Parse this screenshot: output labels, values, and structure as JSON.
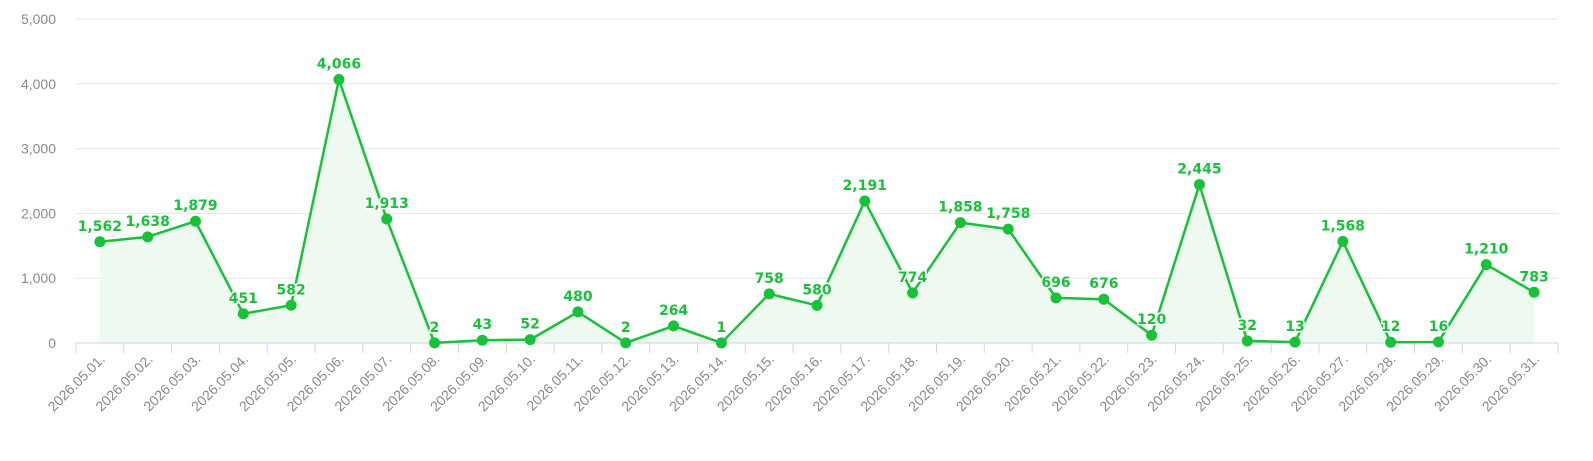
{
  "chart_data": {
    "type": "line",
    "categories": [
      "2026.05.01.",
      "2026.05.02.",
      "2026.05.03.",
      "2026.05.04.",
      "2026.05.05.",
      "2026.05.06.",
      "2026.05.07.",
      "2026.05.08.",
      "2026.05.09.",
      "2026.05.10.",
      "2026.05.11.",
      "2026.05.12.",
      "2026.05.13.",
      "2026.05.14.",
      "2026.05.15.",
      "2026.05.16.",
      "2026.05.17.",
      "2026.05.18.",
      "2026.05.19.",
      "2026.05.20.",
      "2026.05.21.",
      "2026.05.22.",
      "2026.05.23.",
      "2026.05.24.",
      "2026.05.25.",
      "2026.05.26.",
      "2026.05.27.",
      "2026.05.28.",
      "2026.05.29.",
      "2026.05.30.",
      "2026.05.31."
    ],
    "values": [
      1562,
      1638,
      1879,
      451,
      582,
      4066,
      1913,
      2,
      43,
      52,
      480,
      2,
      264,
      1,
      758,
      580,
      2191,
      774,
      1858,
      1758,
      696,
      676,
      120,
      2445,
      32,
      13,
      1568,
      12,
      16,
      1210,
      783
    ],
    "data_labels": [
      "1,562",
      "1,638",
      "1,879",
      "451",
      "582",
      "4,066",
      "1,913",
      "2",
      "43",
      "52",
      "480",
      "2",
      "264",
      "1",
      "758",
      "580",
      "2,191",
      "774",
      "1,858",
      "1,758",
      "696",
      "676",
      "120",
      "2,445",
      "32",
      "13",
      "1,568",
      "12",
      "16",
      "1,210",
      "783"
    ],
    "y_ticks": [
      0,
      1000,
      2000,
      3000,
      4000,
      5000
    ],
    "y_tick_labels": [
      "0",
      "1,000",
      "2,000",
      "3,000",
      "4,000",
      "5,000"
    ],
    "ylim": [
      0,
      5000
    ],
    "grid": true,
    "title": "",
    "xlabel": "",
    "ylabel": "",
    "colors": {
      "line": "#17c23a",
      "area": "#eefaf0",
      "grid": "#e6e6e6",
      "axis": "#ccd6eb",
      "tick_label": "#8a8a8a"
    }
  }
}
